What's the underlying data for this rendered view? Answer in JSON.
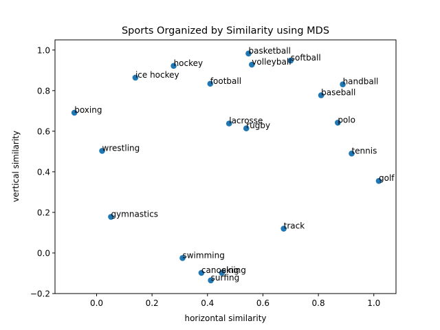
{
  "chart_data": {
    "type": "scatter",
    "title": "Sports Organized by Similarity using MDS",
    "xlabel": "horizontal similarity",
    "ylabel": "vertical similarity",
    "xlim": [
      -0.15,
      1.08
    ],
    "ylim": [
      -0.2,
      1.05
    ],
    "xticks": [
      0.0,
      0.2,
      0.4,
      0.6,
      0.8,
      1.0
    ],
    "xtick_labels": [
      "0.0",
      "0.2",
      "0.4",
      "0.6",
      "0.8",
      "1.0"
    ],
    "yticks": [
      -0.2,
      0.0,
      0.2,
      0.4,
      0.6,
      0.8,
      1.0
    ],
    "ytick_labels": [
      "−0.2",
      "0.0",
      "0.2",
      "0.4",
      "0.6",
      "0.8",
      "1.0"
    ],
    "grid": false,
    "point_color": "#1f77b4",
    "points": [
      {
        "label": "basketball",
        "x": 0.548,
        "y": 0.983
      },
      {
        "label": "softball",
        "x": 0.7,
        "y": 0.948
      },
      {
        "label": "volleyball",
        "x": 0.56,
        "y": 0.928
      },
      {
        "label": "hockey",
        "x": 0.278,
        "y": 0.922
      },
      {
        "label": "ice hockey",
        "x": 0.14,
        "y": 0.864
      },
      {
        "label": "football",
        "x": 0.41,
        "y": 0.834
      },
      {
        "label": "handball",
        "x": 0.888,
        "y": 0.831
      },
      {
        "label": "baseball",
        "x": 0.81,
        "y": 0.777
      },
      {
        "label": "boxing",
        "x": -0.08,
        "y": 0.691
      },
      {
        "label": "lacrosse",
        "x": 0.478,
        "y": 0.638
      },
      {
        "label": "polo",
        "x": 0.87,
        "y": 0.642
      },
      {
        "label": "rugby",
        "x": 0.54,
        "y": 0.614
      },
      {
        "label": "wrestling",
        "x": 0.02,
        "y": 0.503
      },
      {
        "label": "tennis",
        "x": 0.92,
        "y": 0.49
      },
      {
        "label": "golf",
        "x": 1.018,
        "y": 0.355
      },
      {
        "label": "gymnastics",
        "x": 0.052,
        "y": 0.178
      },
      {
        "label": "track",
        "x": 0.675,
        "y": 0.12
      },
      {
        "label": "swimming",
        "x": 0.31,
        "y": -0.025
      },
      {
        "label": "canoeing",
        "x": 0.378,
        "y": -0.098
      },
      {
        "label": "skiing",
        "x": 0.452,
        "y": -0.098
      },
      {
        "label": "surfing",
        "x": 0.412,
        "y": -0.135
      }
    ]
  }
}
